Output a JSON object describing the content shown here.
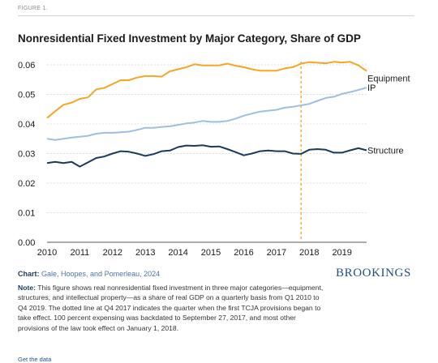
{
  "figure_label": "FIGURE 1.",
  "title": "Nonresidential Fixed Investment by Major Category, Share of GDP",
  "source": {
    "prefix": "Chart:",
    "text": "Gale, Hoopes, and Pomerleau, 2024"
  },
  "brand": "BROOKINGS",
  "note": {
    "prefix": "Note:",
    "text": "This figure shows real nonresidential fixed investment in three major categories—equipment, structures, and intellectual property—as a share of real GDP on a quarterly basis from Q1 2010 to Q4 2019. The dotted line at Q4 2017 indicates the quarter when the first TCJA provisions began to take effect. 100 percent expensing was backdated to September 27, 2017, and most other provisions of the law took effect on January 1, 2018."
  },
  "get_data": "Get the data",
  "chart_data": {
    "type": "line",
    "title": "Nonresidential Fixed Investment by Major Category, Share of GDP",
    "xlabel": "",
    "ylabel": "",
    "x": [
      "2010 Q1",
      "2010 Q2",
      "2010 Q3",
      "2010 Q4",
      "2011 Q1",
      "2011 Q2",
      "2011 Q3",
      "2011 Q4",
      "2012 Q1",
      "2012 Q2",
      "2012 Q3",
      "2012 Q4",
      "2013 Q1",
      "2013 Q2",
      "2013 Q3",
      "2013 Q4",
      "2014 Q1",
      "2014 Q2",
      "2014 Q3",
      "2014 Q4",
      "2015 Q1",
      "2015 Q2",
      "2015 Q3",
      "2015 Q4",
      "2016 Q1",
      "2016 Q2",
      "2016 Q3",
      "2016 Q4",
      "2017 Q1",
      "2017 Q2",
      "2017 Q3",
      "2017 Q4",
      "2018 Q1",
      "2018 Q2",
      "2018 Q3",
      "2018 Q4",
      "2019 Q1",
      "2019 Q2",
      "2019 Q3",
      "2019 Q4"
    ],
    "x_tick_labels": [
      "2010",
      "2011",
      "2012",
      "2013",
      "2014",
      "2015",
      "2016",
      "2017",
      "2018",
      "2019"
    ],
    "ylim": [
      0,
      0.06
    ],
    "y_ticks": [
      0,
      0.01,
      0.02,
      0.03,
      0.04,
      0.05,
      0.06
    ],
    "y_tick_labels": [
      "0.00",
      "0.01",
      "0.02",
      "0.03",
      "0.04",
      "0.05",
      "0.06"
    ],
    "grid": "horizontal dotted",
    "legend": "direct labels at right",
    "marker_line": {
      "x": "2017 Q4",
      "style": "dotted",
      "color": "#f5a623"
    },
    "series": [
      {
        "name": "Equipment",
        "color": "#f5a623",
        "values": [
          0.042,
          0.0443,
          0.0465,
          0.0472,
          0.0485,
          0.049,
          0.0517,
          0.0522,
          0.0535,
          0.0548,
          0.0548,
          0.0557,
          0.0562,
          0.0562,
          0.056,
          0.0578,
          0.0585,
          0.0592,
          0.0602,
          0.0598,
          0.0598,
          0.0598,
          0.0604,
          0.0597,
          0.0592,
          0.0585,
          0.058,
          0.058,
          0.058,
          0.0588,
          0.0592,
          0.0604,
          0.0609,
          0.0607,
          0.0605,
          0.061,
          0.0608,
          0.061,
          0.0598,
          0.0579
        ]
      },
      {
        "name": "IP",
        "color": "#9dbfe3",
        "values": [
          0.035,
          0.0346,
          0.035,
          0.0354,
          0.0357,
          0.036,
          0.0367,
          0.037,
          0.037,
          0.0372,
          0.0374,
          0.038,
          0.0387,
          0.0387,
          0.039,
          0.0392,
          0.0397,
          0.0402,
          0.0405,
          0.041,
          0.0407,
          0.0407,
          0.041,
          0.0418,
          0.0428,
          0.0435,
          0.0442,
          0.0445,
          0.0448,
          0.0455,
          0.0458,
          0.0463,
          0.0468,
          0.0478,
          0.0488,
          0.0492,
          0.0502,
          0.0508,
          0.0515,
          0.0523
        ]
      },
      {
        "name": "Structure",
        "color": "#1a3a5c",
        "values": [
          0.0268,
          0.0272,
          0.0268,
          0.0272,
          0.0256,
          0.027,
          0.0285,
          0.029,
          0.03,
          0.0308,
          0.0306,
          0.03,
          0.0292,
          0.0298,
          0.0308,
          0.031,
          0.0322,
          0.0327,
          0.0326,
          0.0328,
          0.0323,
          0.0324,
          0.0315,
          0.0305,
          0.0294,
          0.03,
          0.0308,
          0.031,
          0.0308,
          0.0308,
          0.03,
          0.0299,
          0.0313,
          0.0315,
          0.0313,
          0.0303,
          0.0303,
          0.0311,
          0.0318,
          0.0311
        ]
      }
    ]
  }
}
